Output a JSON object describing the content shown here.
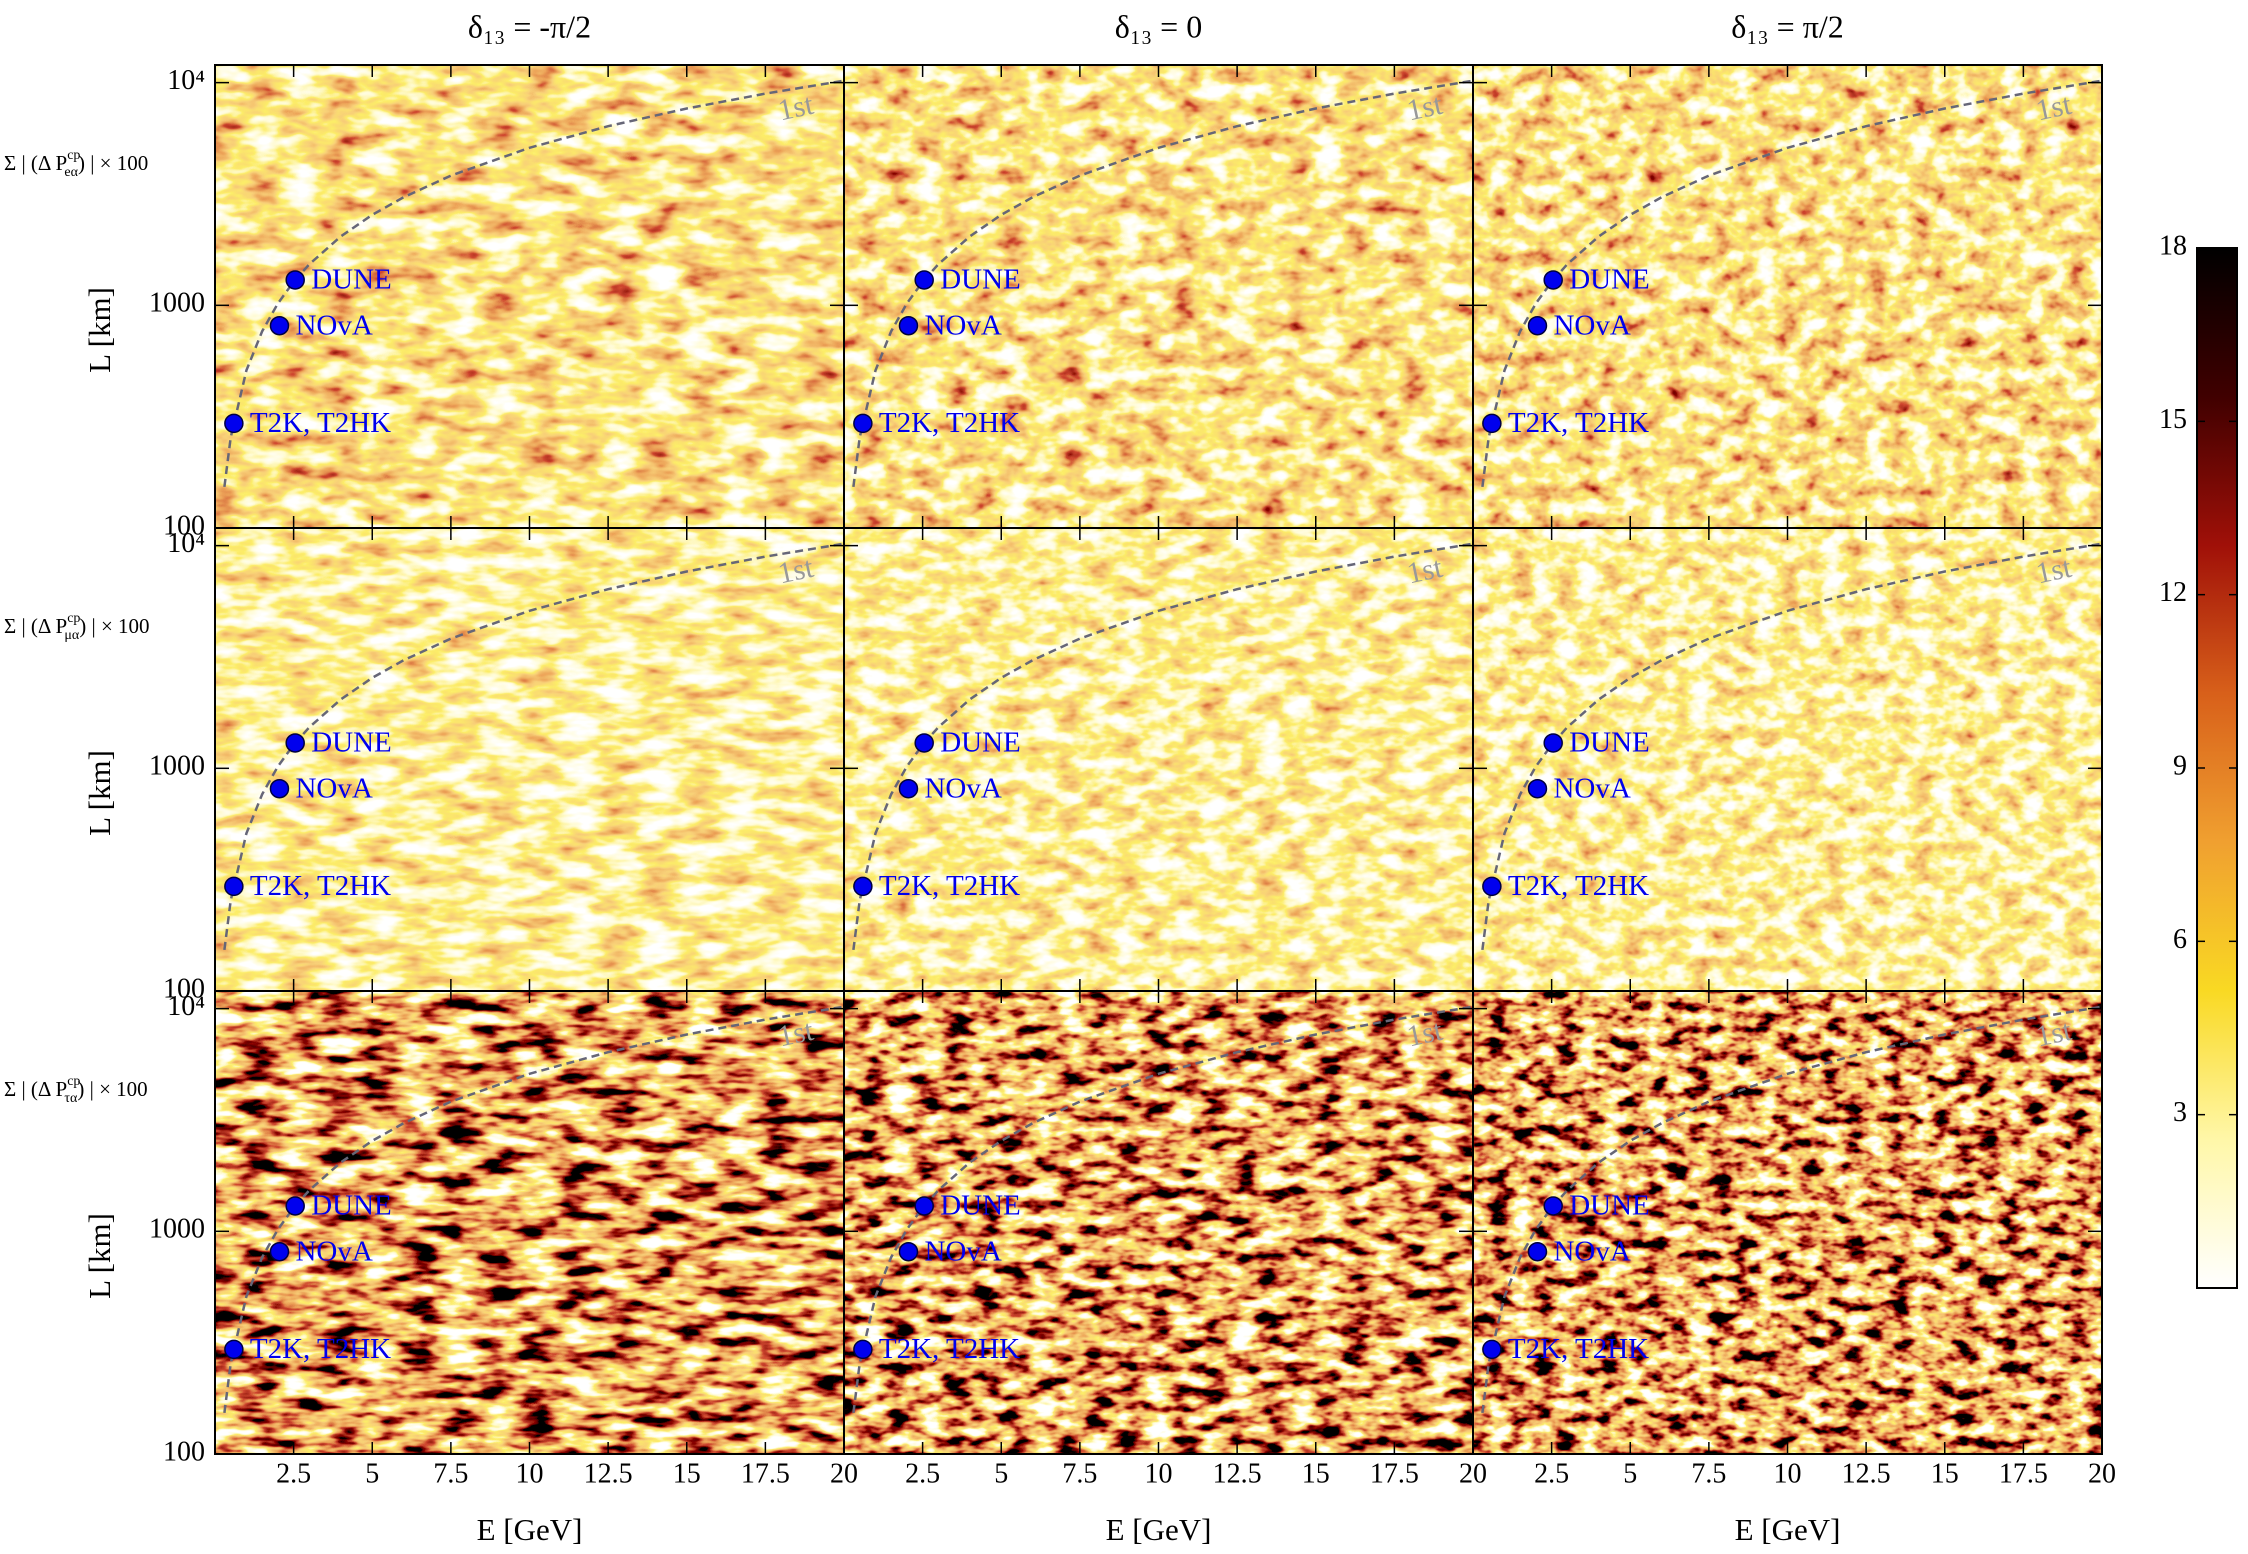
{
  "chart_data": {
    "type": "heatmap",
    "column_titles": [
      "δ₁₃ = -π/2",
      "δ₁₃ = 0",
      "δ₁₃ = π/2"
    ],
    "row_labels": [
      {
        "prefix": "Σ | (Δ P",
        "sup": "cp",
        "sub": "eα",
        "suffix": ") | × 100"
      },
      {
        "prefix": "Σ | (Δ P",
        "sup": "cp",
        "sub": "μα",
        "suffix": ") | × 100"
      },
      {
        "prefix": "Σ | (Δ P",
        "sup": "cp",
        "sub": "τα",
        "suffix": ") | × 100"
      }
    ],
    "xlabel": "E [GeV]",
    "ylabel": "L [km]",
    "xlim": [
      0,
      20
    ],
    "xticks": [
      2.5,
      5,
      7.5,
      10,
      12.5,
      15,
      17.5,
      20
    ],
    "ylim": [
      100,
      12000
    ],
    "log_y": true,
    "yticks": [
      100,
      1000,
      {
        "value": 10000,
        "label": "10⁴"
      }
    ],
    "colorbar": {
      "zlim": [
        0,
        18
      ],
      "ticks": [
        3,
        6,
        9,
        12,
        15,
        18
      ],
      "colormap": [
        "#ffffff",
        "#fff7a8",
        "#f9d923",
        "#f0a030",
        "#d8601a",
        "#a01008",
        "#400000",
        "#000000"
      ]
    },
    "experiments": {
      "names": [
        "T2K, T2HK",
        "NOvA",
        "DUNE"
      ],
      "x": [
        0.6,
        2.05,
        2.55
      ],
      "y": [
        295,
        810,
        1300
      ],
      "color": "#0000ee"
    },
    "curve": {
      "label": "1st",
      "color": "#666677",
      "dashed": true,
      "x": [
        0.3,
        0.5,
        1,
        1.5,
        2,
        2.5,
        3,
        4,
        5,
        6,
        7.5,
        10,
        12.5,
        15,
        17.5,
        20
      ],
      "y": [
        153,
        255,
        510,
        765,
        1020,
        1275,
        1530,
        2040,
        2550,
        3060,
        3825,
        5100,
        6375,
        7650,
        8925,
        10200
      ]
    }
  }
}
